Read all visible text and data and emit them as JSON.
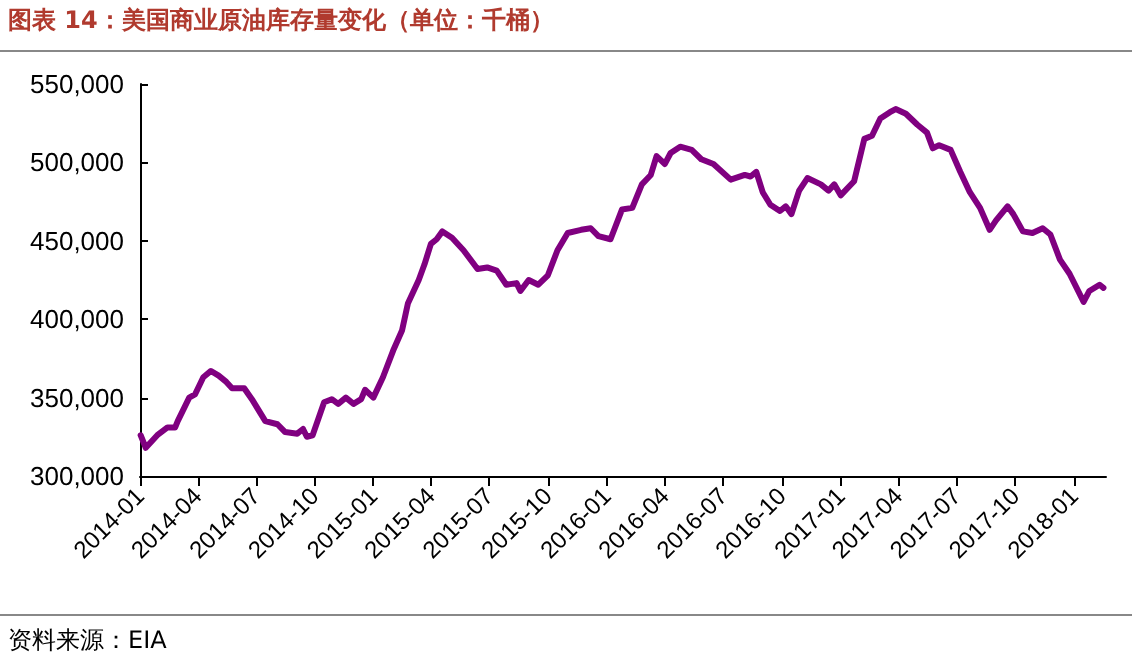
{
  "chart_data": {
    "type": "line",
    "title": "图表 14：美国商业原油库存量变化（单位：千桶）",
    "annotations": [
      "资料来源：EIA"
    ],
    "x": [
      "2014-01-02",
      "2014-01-10",
      "2014-01-28",
      "2014-02-13",
      "2014-02-25",
      "2014-03-01",
      "2014-03-19",
      "2014-03-28",
      "2014-04-10",
      "2014-04-22",
      "2014-05-04",
      "2014-05-16",
      "2014-05-25",
      "2014-06-13",
      "2014-06-25",
      "2014-07-16",
      "2014-08-04",
      "2014-08-16",
      "2014-09-04",
      "2014-09-13",
      "2014-09-19",
      "2014-09-28",
      "2014-10-16",
      "2014-10-28",
      "2014-11-07",
      "2014-11-19",
      "2014-12-01",
      "2014-12-13",
      "2014-12-19",
      "2015-01-01",
      "2015-01-16",
      "2015-02-01",
      "2015-02-15",
      "2015-02-24",
      "2015-03-13",
      "2015-03-22",
      "2015-04-01",
      "2015-04-10",
      "2015-04-19",
      "2015-05-04",
      "2015-05-22",
      "2015-06-13",
      "2015-06-28",
      "2015-07-13",
      "2015-07-28",
      "2015-08-13",
      "2015-08-19",
      "2015-09-01",
      "2015-09-16",
      "2015-10-01",
      "2015-10-16",
      "2015-11-01",
      "2015-11-22",
      "2015-12-07",
      "2015-12-19",
      "2016-01-07",
      "2016-01-25",
      "2016-02-10",
      "2016-02-25",
      "2016-03-10",
      "2016-03-19",
      "2016-04-01",
      "2016-04-10",
      "2016-04-25",
      "2016-05-13",
      "2016-05-28",
      "2016-06-16",
      "2016-07-13",
      "2016-08-04",
      "2016-08-13",
      "2016-08-22",
      "2016-09-01",
      "2016-09-13",
      "2016-09-28",
      "2016-10-07",
      "2016-10-16",
      "2016-10-28",
      "2016-11-10",
      "2016-12-01",
      "2016-12-13",
      "2016-12-22",
      "2017-01-01",
      "2017-01-22",
      "2017-02-07",
      "2017-02-19",
      "2017-03-04",
      "2017-03-19",
      "2017-03-28",
      "2017-04-13",
      "2017-05-01",
      "2017-05-16",
      "2017-05-25",
      "2017-06-04",
      "2017-06-22",
      "2017-07-07",
      "2017-07-22",
      "2017-08-07",
      "2017-08-22",
      "2017-09-01",
      "2017-09-19",
      "2017-09-28",
      "2017-10-13",
      "2017-10-28",
      "2017-11-13",
      "2017-11-25",
      "2017-12-10",
      "2017-12-25",
      "2018-01-16",
      "2018-01-25",
      "2018-02-10",
      "2018-02-16"
    ],
    "series": [
      {
        "color": "#800080",
        "values": [
          326000,
          318000,
          326000,
          331000,
          331000,
          335000,
          350000,
          352000,
          363000,
          367000,
          364000,
          360000,
          356000,
          356000,
          349000,
          335000,
          333000,
          328000,
          327000,
          330000,
          325000,
          326000,
          347000,
          349000,
          346000,
          350000,
          346000,
          349000,
          355000,
          350000,
          363000,
          380000,
          393000,
          410000,
          425000,
          435000,
          448000,
          451000,
          456000,
          452000,
          444000,
          432000,
          433000,
          431000,
          422000,
          423000,
          418000,
          425000,
          422000,
          428000,
          444000,
          455000,
          457000,
          458000,
          453000,
          451000,
          470000,
          471000,
          486000,
          492000,
          504000,
          499000,
          506000,
          510000,
          508000,
          502000,
          499000,
          489000,
          492000,
          491000,
          494000,
          481000,
          473000,
          469000,
          472000,
          467000,
          482000,
          490000,
          486000,
          482000,
          486000,
          479000,
          488000,
          515000,
          517000,
          528000,
          532000,
          534000,
          531000,
          524000,
          519000,
          509000,
          511000,
          508000,
          494000,
          481000,
          471000,
          457000,
          463000,
          472000,
          467000,
          456000,
          455000,
          458000,
          454000,
          438000,
          429000,
          411000,
          418000,
          422000,
          420000
        ]
      }
    ],
    "xlim": [
      "2014-01-01",
      "2018-02-20"
    ],
    "xticks": [
      "2014-01",
      "2014-04",
      "2014-07",
      "2014-10",
      "2015-01",
      "2015-04",
      "2015-07",
      "2015-10",
      "2016-01",
      "2016-04",
      "2016-07",
      "2016-10",
      "2017-01",
      "2017-04",
      "2017-07",
      "2017-10",
      "2018-01"
    ],
    "ylim": [
      300000,
      550000
    ],
    "yticks": [
      {
        "value": 300000,
        "label": "300,000"
      },
      {
        "value": 350000,
        "label": "350,000"
      },
      {
        "value": 400000,
        "label": "400,000"
      },
      {
        "value": 450000,
        "label": "450,000"
      },
      {
        "value": 500000,
        "label": "500,000"
      },
      {
        "value": 550000,
        "label": "550,000"
      }
    ],
    "grid": false,
    "marker": "none",
    "line_style": "solid"
  }
}
